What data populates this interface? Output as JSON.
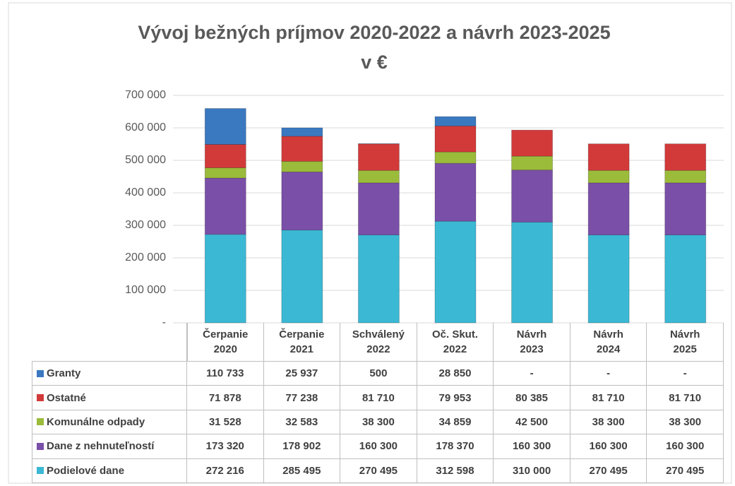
{
  "chart_data": {
    "type": "stacked_bar",
    "title": "Vývoj bežných príjmov 2020-2022 a návrh 2023-2025",
    "subtitle": "v €",
    "categories": [
      "Čerpanie\n2020",
      "Čerpanie\n2021",
      "Schválený\n2022",
      "Oč. Skut.\n2022",
      "Návrh\n2023",
      "Návrh\n2024",
      "Návrh\n2025"
    ],
    "series": [
      {
        "name": "Granty",
        "color": "#3a78c0",
        "values": [
          110733,
          25937,
          500,
          28850,
          0,
          0,
          0
        ],
        "value_labels": [
          "110 733",
          "25 937",
          "500",
          "28 850",
          "-",
          "-",
          "-"
        ]
      },
      {
        "name": "Ostatné",
        "color": "#d23a3a",
        "values": [
          71878,
          77238,
          81710,
          79953,
          80385,
          81710,
          81710
        ],
        "value_labels": [
          "71 878",
          "77 238",
          "81 710",
          "79 953",
          "80 385",
          "81 710",
          "81 710"
        ]
      },
      {
        "name": "Komunálne odpady",
        "color": "#9bbb3a",
        "values": [
          31528,
          32583,
          38300,
          34859,
          42500,
          38300,
          38300
        ],
        "value_labels": [
          "31 528",
          "32 583",
          "38 300",
          "34 859",
          "42 500",
          "38 300",
          "38 300"
        ]
      },
      {
        "name": "Dane z nehnuteľností",
        "color": "#7a4fa8",
        "values": [
          173320,
          178902,
          160300,
          178370,
          160300,
          160300,
          160300
        ],
        "value_labels": [
          "173 320",
          "178 902",
          "160 300",
          "178 370",
          "160 300",
          "160 300",
          "160 300"
        ]
      },
      {
        "name": "Podielové dane",
        "color": "#3bb8d4",
        "values": [
          272216,
          285495,
          270495,
          312598,
          310000,
          270495,
          270495
        ],
        "value_labels": [
          "272 216",
          "285 495",
          "270 495",
          "312 598",
          "310 000",
          "270 495",
          "270 495"
        ]
      }
    ],
    "ylim": [
      0,
      700000
    ],
    "yticks": [
      {
        "value": 0,
        "label": "-"
      },
      {
        "value": 100000,
        "label": "100 000"
      },
      {
        "value": 200000,
        "label": "200 000"
      },
      {
        "value": 300000,
        "label": "300 000"
      },
      {
        "value": 400000,
        "label": "400 000"
      },
      {
        "value": 500000,
        "label": "500 000"
      },
      {
        "value": 600000,
        "label": "600 000"
      },
      {
        "value": 700000,
        "label": "700 000"
      }
    ],
    "grid": true
  }
}
